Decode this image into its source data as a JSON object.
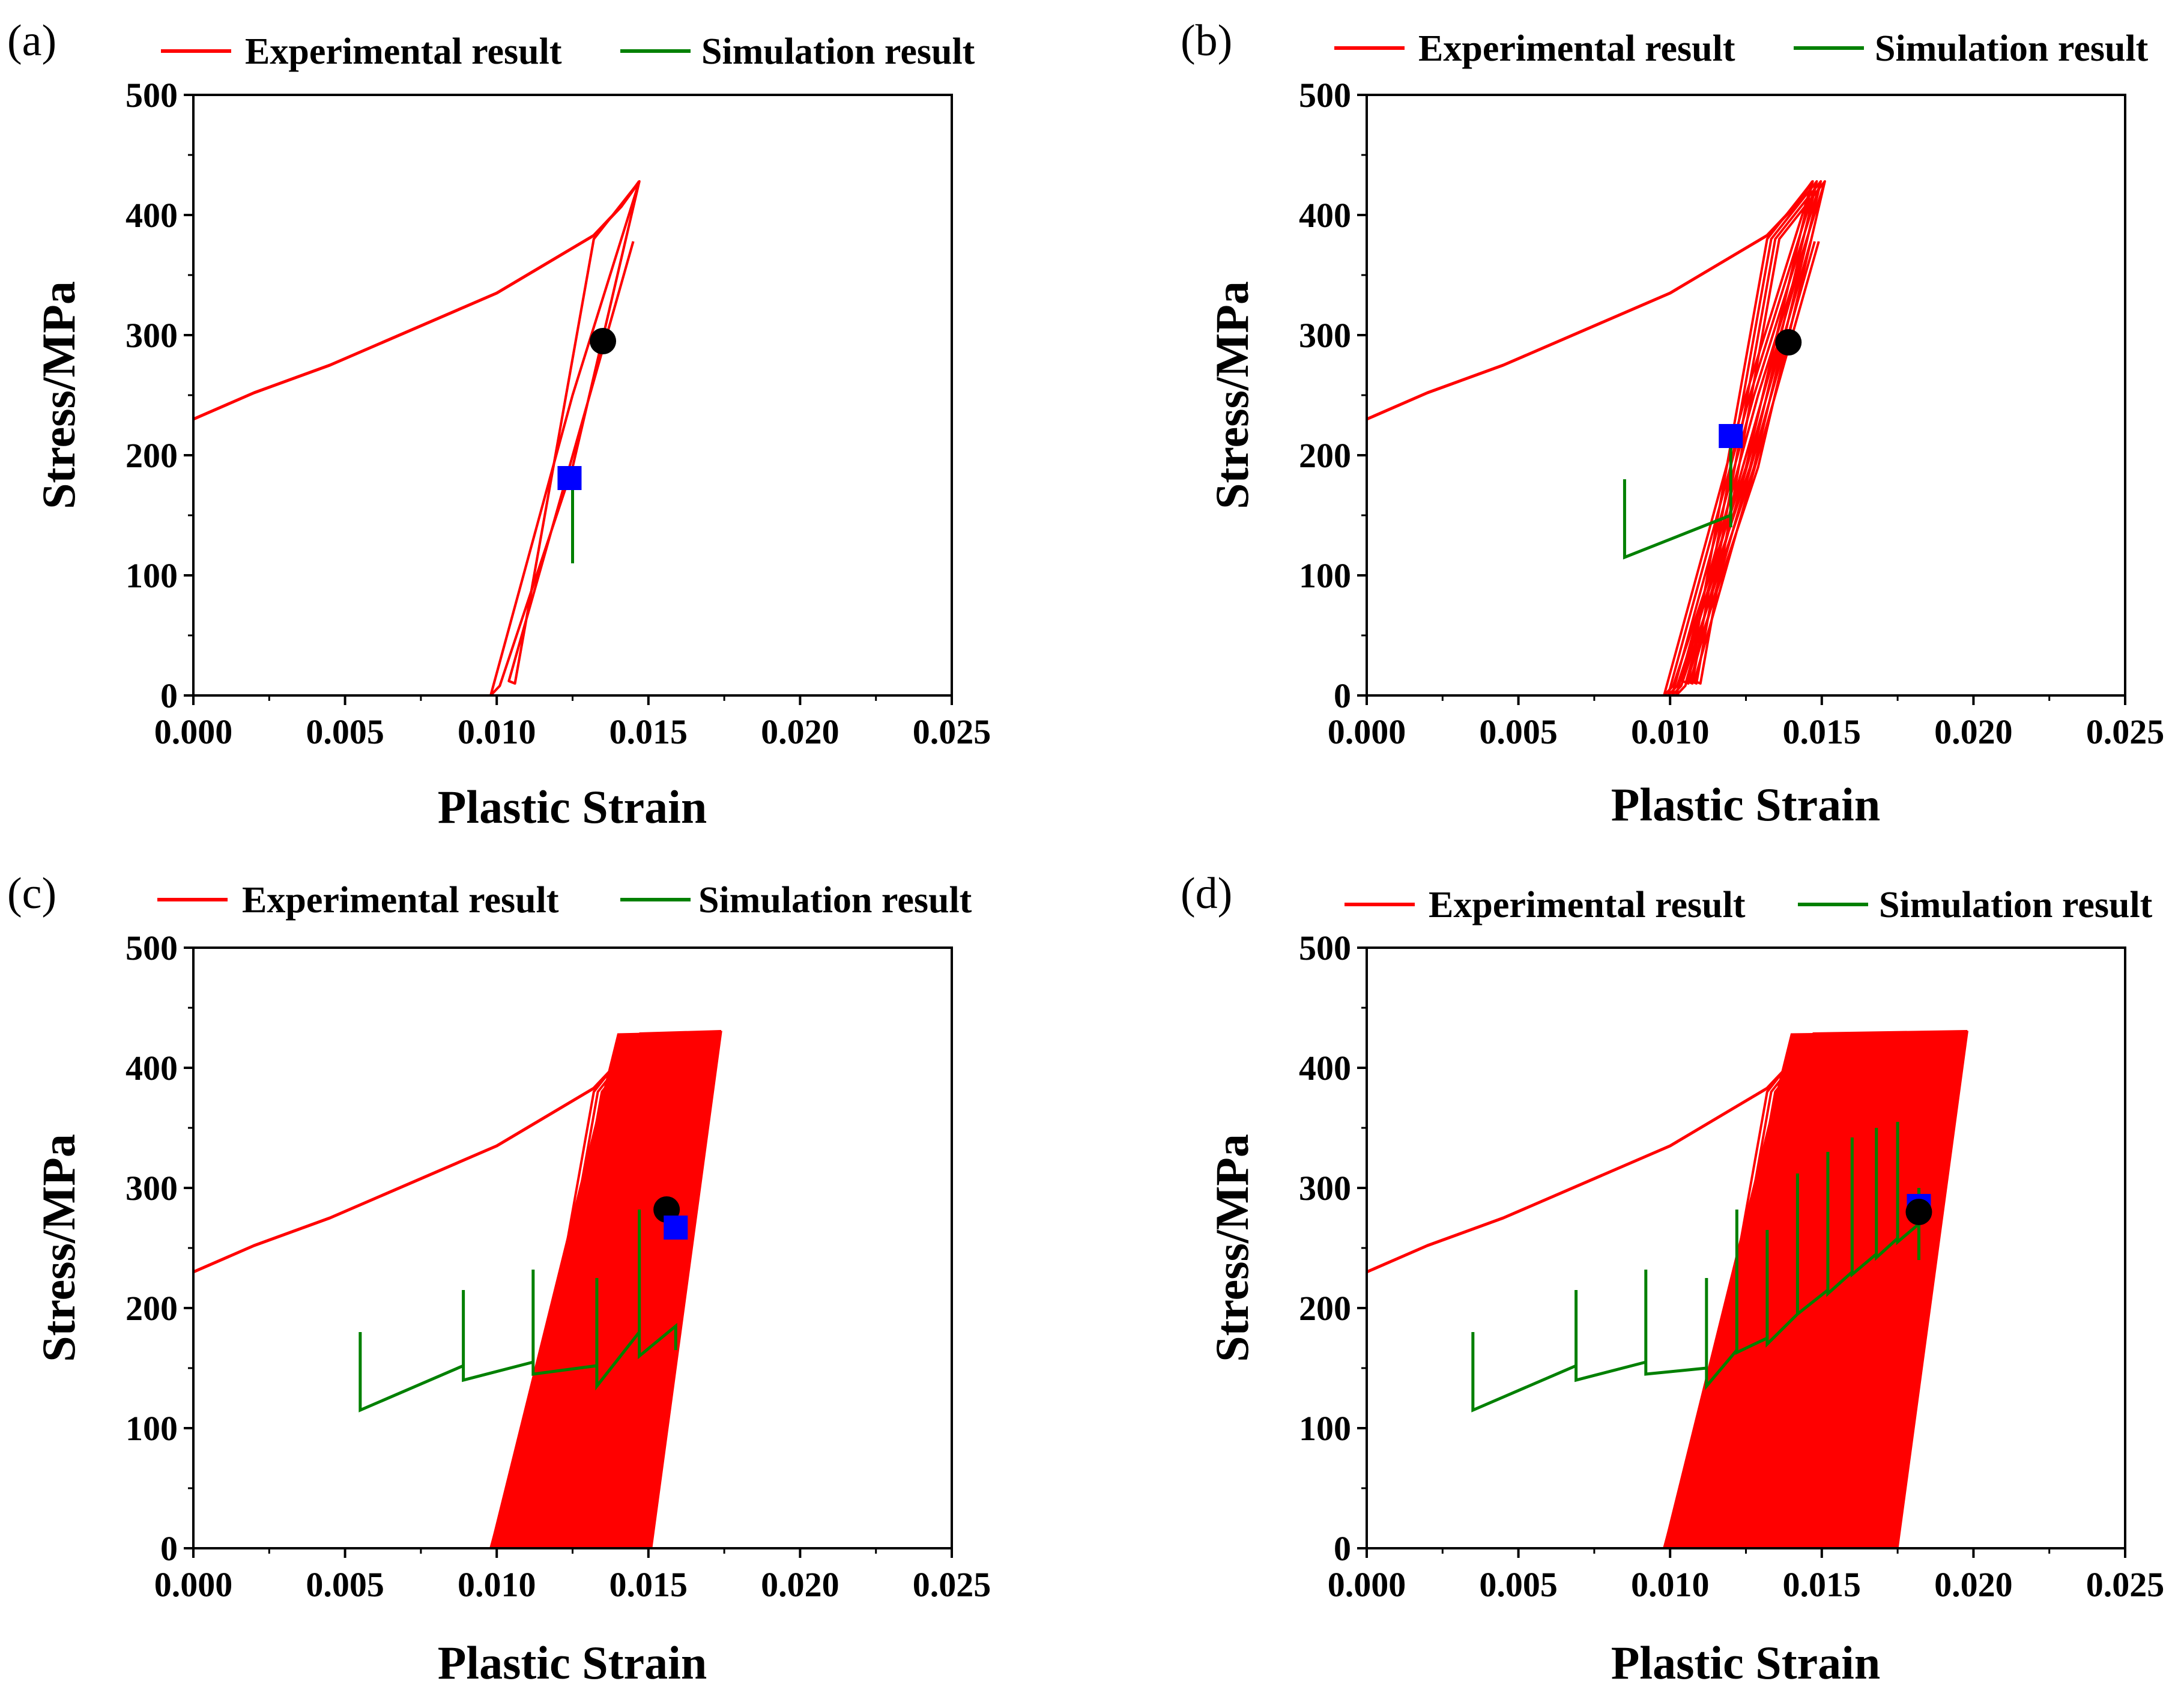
{
  "chart_data": [
    {
      "panel_label": "(a)",
      "type": "line",
      "xlabel": "Plastic Strain",
      "ylabel": "Stress/MPa",
      "xlim": [
        0,
        0.025
      ],
      "ylim": [
        0,
        500
      ],
      "xticks": [
        "0.000",
        "0.005",
        "0.010",
        "0.015",
        "0.020",
        "0.025"
      ],
      "yticks": [
        "0",
        "100",
        "200",
        "300",
        "400",
        "500"
      ],
      "legend": [
        "Experimental result",
        "Simulation result"
      ],
      "series": [
        {
          "name": "Experimental result",
          "color": "#ff0000",
          "cycles": 2,
          "band_end": 0.0146,
          "x": [
            0,
            0.002,
            0.0045,
            0.01,
            0.0132,
            0.0141,
            0.0147,
            0.0125,
            0.0098,
            0.0101,
            0.0125,
            0.0147,
            0.0132,
            0.0106,
            0.0104,
            0.0145
          ],
          "y": [
            230,
            252,
            275,
            335,
            383,
            407,
            428,
            250,
            0,
            8,
            190,
            428,
            380,
            10,
            12,
            378
          ]
        },
        {
          "name": "Simulation result",
          "color": "#008000",
          "x": [
            0.0125,
            0.0125
          ],
          "y": [
            110,
            180
          ]
        }
      ],
      "markers": [
        {
          "shape": "circle",
          "color": "#000000",
          "x": 0.0135,
          "y": 295
        },
        {
          "shape": "square",
          "color": "#0000ff",
          "x": 0.0124,
          "y": 181
        }
      ]
    },
    {
      "panel_label": "(b)",
      "type": "line",
      "xlabel": "Plastic Strain",
      "ylabel": "Stress/MPa",
      "xlim": [
        0,
        0.025
      ],
      "ylim": [
        0,
        500
      ],
      "xticks": [
        "0.000",
        "0.005",
        "0.010",
        "0.015",
        "0.020",
        "0.025"
      ],
      "yticks": [
        "0",
        "100",
        "200",
        "300",
        "400",
        "500"
      ],
      "legend": [
        "Experimental result",
        "Simulation result"
      ],
      "series": [
        {
          "name": "Experimental result",
          "color": "#ff0000",
          "cycles": 4,
          "band_end": 0.0151,
          "x": [
            0,
            0.002,
            0.0045,
            0.01,
            0.0132,
            0.0141,
            0.0147,
            0.0125,
            0.0098,
            0.0101,
            0.0125,
            0.0147,
            0.0132,
            0.0106,
            0.0104,
            0.0145
          ],
          "y": [
            230,
            252,
            275,
            335,
            383,
            407,
            428,
            250,
            0,
            8,
            190,
            428,
            380,
            10,
            12,
            378
          ]
        },
        {
          "name": "Simulation result",
          "color": "#008000",
          "x": [
            0.0085,
            0.0085,
            0.0085,
            0.012,
            0.012,
            0.012
          ],
          "y": [
            180,
            155,
            115,
            150,
            210,
            140
          ]
        }
      ],
      "markers": [
        {
          "shape": "circle",
          "color": "#000000",
          "x": 0.0139,
          "y": 294
        },
        {
          "shape": "square",
          "color": "#0000ff",
          "x": 0.012,
          "y": 216
        }
      ]
    },
    {
      "panel_label": "(c)",
      "type": "line",
      "xlabel": "Plastic Strain",
      "ylabel": "Stress/MPa",
      "xlim": [
        0,
        0.025
      ],
      "ylim": [
        0,
        500
      ],
      "xticks": [
        "0.000",
        "0.005",
        "0.010",
        "0.015",
        "0.020",
        "0.025"
      ],
      "yticks": [
        "0",
        "100",
        "200",
        "300",
        "400",
        "500"
      ],
      "legend": [
        "Experimental result",
        "Simulation result"
      ],
      "series": [
        {
          "name": "Experimental result",
          "color": "#ff0000",
          "cycles": 40,
          "band_end": 0.0174,
          "x": [
            0,
            0.002,
            0.0045,
            0.01,
            0.0132,
            0.0141,
            0.0147,
            0.0125,
            0.0098,
            0.0101,
            0.0125,
            0.0147,
            0.0132,
            0.0106,
            0.0104,
            0.0145
          ],
          "y": [
            230,
            252,
            275,
            335,
            383,
            407,
            428,
            250,
            0,
            8,
            190,
            428,
            380,
            10,
            12,
            378
          ]
        },
        {
          "name": "Simulation result",
          "color": "#008000",
          "x": [
            0.0055,
            0.0055,
            0.0055,
            0.0089,
            0.0089,
            0.0089,
            0.0112,
            0.0112,
            0.0112,
            0.0133,
            0.0133,
            0.0133,
            0.0147,
            0.0147,
            0.0147,
            0.0159,
            0.0159
          ],
          "y": [
            180,
            150,
            115,
            152,
            215,
            140,
            155,
            232,
            145,
            152,
            225,
            135,
            180,
            282,
            160,
            185,
            165
          ]
        }
      ],
      "markers": [
        {
          "shape": "circle",
          "color": "#000000",
          "x": 0.0156,
          "y": 282
        },
        {
          "shape": "square",
          "color": "#0000ff",
          "x": 0.0159,
          "y": 267
        }
      ]
    },
    {
      "panel_label": "(d)",
      "type": "line",
      "xlabel": "Plastic Strain",
      "ylabel": "Stress/MPa",
      "xlim": [
        0,
        0.025
      ],
      "ylim": [
        0,
        500
      ],
      "xticks": [
        "0.000",
        "0.005",
        "0.010",
        "0.015",
        "0.020",
        "0.025"
      ],
      "yticks": [
        "0",
        "100",
        "200",
        "300",
        "400",
        "500"
      ],
      "legend": [
        "Experimental result",
        "Simulation result"
      ],
      "series": [
        {
          "name": "Experimental result",
          "color": "#ff0000",
          "cycles": 60,
          "band_end": 0.0198,
          "x": [
            0,
            0.002,
            0.0045,
            0.01,
            0.0132,
            0.0141,
            0.0147,
            0.0125,
            0.0098,
            0.0101,
            0.0125,
            0.0147,
            0.0132,
            0.0106,
            0.0104,
            0.0145
          ],
          "y": [
            230,
            252,
            275,
            335,
            383,
            407,
            428,
            250,
            0,
            8,
            190,
            428,
            380,
            10,
            12,
            378
          ]
        },
        {
          "name": "Simulation result",
          "color": "#008000",
          "x": [
            0.0035,
            0.0035,
            0.0035,
            0.0069,
            0.0069,
            0.0069,
            0.0092,
            0.0092,
            0.0092,
            0.0112,
            0.0112,
            0.0112,
            0.0122,
            0.0122,
            0.0122,
            0.0132,
            0.0132,
            0.0132,
            0.0142,
            0.0142,
            0.0142,
            0.0152,
            0.0152,
            0.0152,
            0.016,
            0.016,
            0.016,
            0.0168,
            0.0168,
            0.0168,
            0.0175,
            0.0175,
            0.0175,
            0.0182,
            0.0182,
            0.0182
          ],
          "y": [
            180,
            150,
            115,
            152,
            215,
            140,
            155,
            232,
            145,
            150,
            225,
            135,
            165,
            282,
            163,
            175,
            265,
            170,
            195,
            312,
            195,
            215,
            330,
            212,
            230,
            342,
            228,
            245,
            350,
            242,
            258,
            355,
            255,
            270,
            300,
            240
          ]
        }
      ],
      "markers": [
        {
          "shape": "square",
          "color": "#0000ff",
          "x": 0.0182,
          "y": 285
        },
        {
          "shape": "circle",
          "color": "#000000",
          "x": 0.0182,
          "y": 280
        }
      ]
    }
  ]
}
